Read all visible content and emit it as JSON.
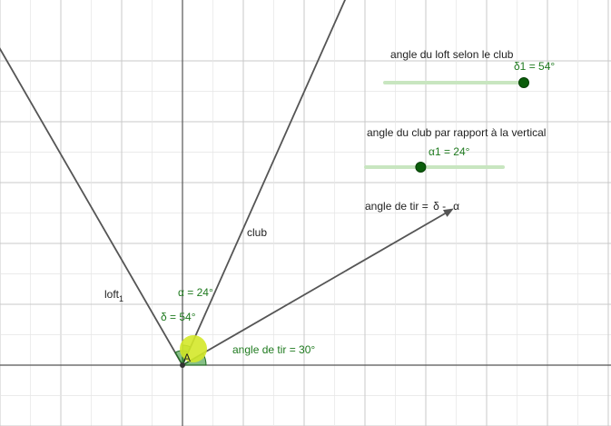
{
  "labels": {
    "loft_slider_title": "angle du loft selon le club",
    "loft_slider_value": "δ1 = 54°",
    "club_slider_title": "angle du club par rapport à la vertical",
    "club_slider_value": "α1 = 24°",
    "formula": "angle de tir = ",
    "formula_delta": "δ -",
    "formula_alpha": "α",
    "club_line": "club",
    "loft_line": "loft",
    "loft_sub": "1",
    "alpha_label": "α = 24°",
    "delta_label": "δ = 54°",
    "shot_label": "angle de tir = 30°",
    "point_A": "A"
  },
  "sliders": {
    "loft": {
      "value": 54,
      "min": 0,
      "max": 54
    },
    "club": {
      "value": 24,
      "min": 0,
      "max": 60
    }
  },
  "angles": {
    "alpha": 24,
    "delta": 54,
    "shot": 30
  },
  "colors": {
    "grid_minor": "#e5e5e5",
    "grid_major": "#c8c8c8",
    "axis": "#555555",
    "line": "#555555",
    "slider_track": "#c8e6c0",
    "slider_knob": "#0b5d0b",
    "angle_fill": "#228b22",
    "ball": "#d4e82a",
    "text_green": "#1f7a1f"
  }
}
